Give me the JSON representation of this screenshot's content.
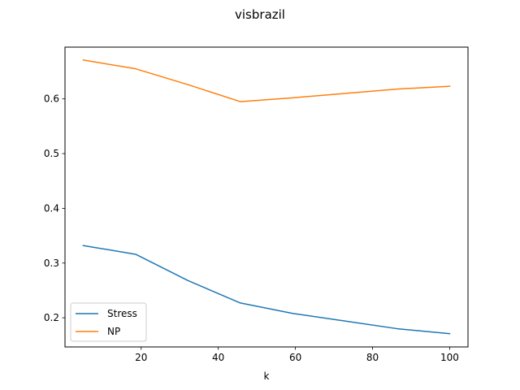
{
  "chart_data": {
    "type": "line",
    "title": "visbrazil",
    "xlabel": "k",
    "ylabel": "",
    "xlim": [
      0.25,
      104.75
    ],
    "ylim": [
      0.1467,
      0.6946
    ],
    "xticks": [
      20,
      40,
      60,
      80,
      100
    ],
    "yticks": [
      0.2,
      0.3,
      0.4,
      0.5,
      0.6
    ],
    "xtick_labels": [
      "20",
      "40",
      "60",
      "80",
      "100"
    ],
    "ytick_labels": [
      "0.2",
      "0.3",
      "0.4",
      "0.5",
      "0.6"
    ],
    "x": [
      5,
      18.57,
      32.14,
      45.71,
      59.29,
      72.86,
      86.43,
      100
    ],
    "series": [
      {
        "name": "Stress",
        "color": "#1f77b4",
        "values": [
          0.332,
          0.316,
          0.268,
          0.227,
          0.208,
          0.194,
          0.18,
          0.171
        ]
      },
      {
        "name": "NP",
        "color": "#ff7f0e",
        "values": [
          0.671,
          0.655,
          0.626,
          0.595,
          0.602,
          0.61,
          0.618,
          0.623
        ]
      }
    ],
    "legend": {
      "position": "lower-left"
    },
    "grid": false
  }
}
